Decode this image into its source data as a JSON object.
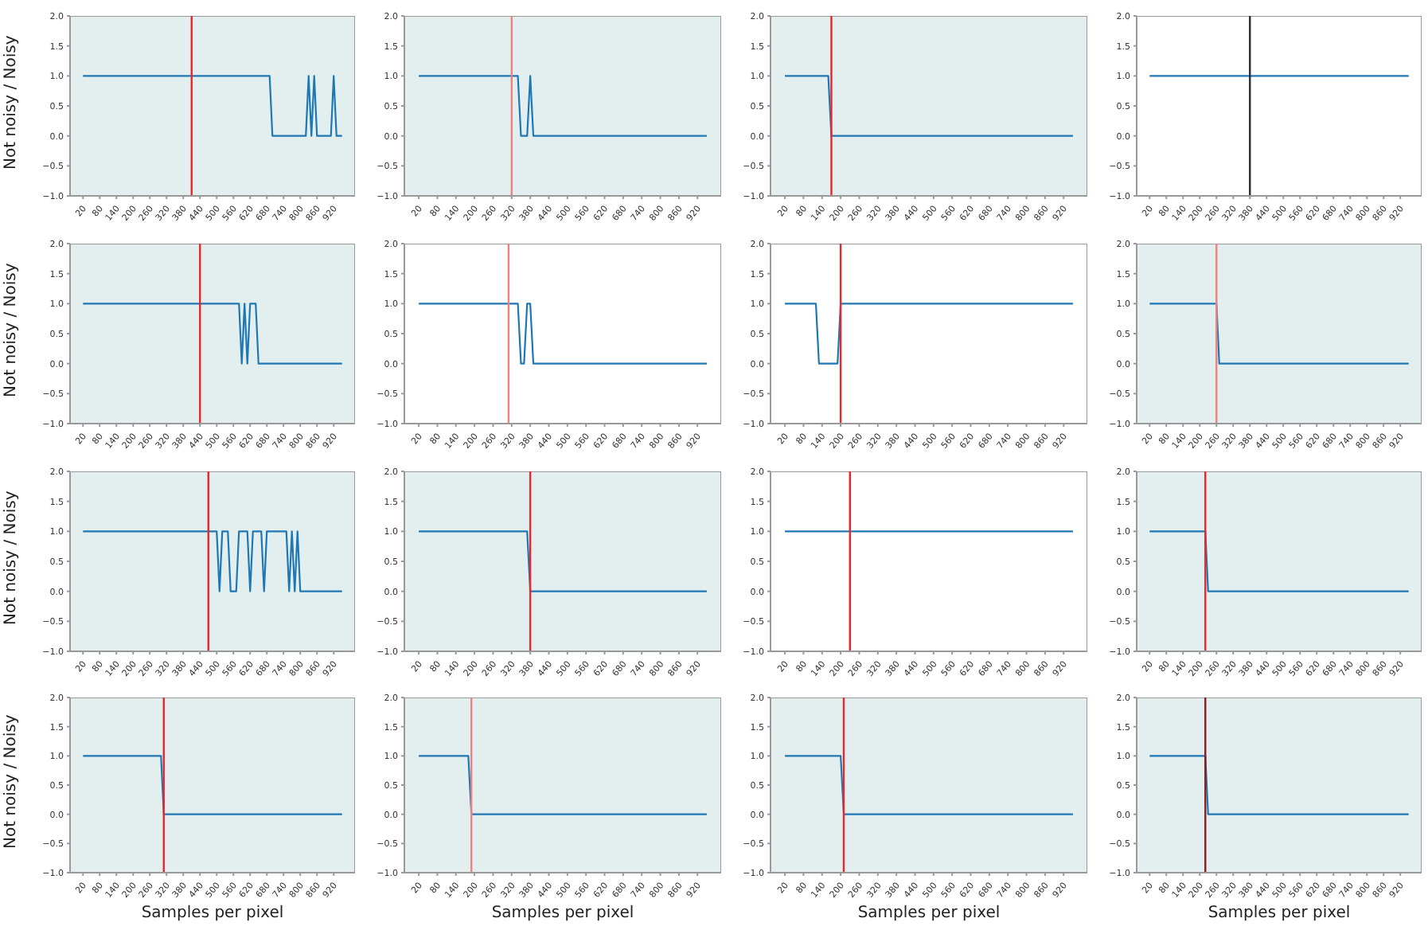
{
  "chart_data": [
    {
      "type": "line",
      "ylabel": "Not noisy / Noisy",
      "series": [
        {
          "color": "#1f77b4",
          "x": [
            20,
            690,
            700,
            820,
            830,
            840,
            850,
            860,
            910,
            920,
            930,
            950
          ],
          "values": [
            1,
            1,
            0,
            0,
            1,
            0,
            1,
            0,
            0,
            1,
            0,
            0
          ]
        }
      ],
      "xlim": [
        -26.5,
        996.5
      ],
      "xticks": [
        20,
        80,
        140,
        200,
        260,
        320,
        380,
        440,
        500,
        560,
        620,
        680,
        740,
        800,
        860,
        920
      ],
      "ylim": [
        -1,
        2
      ],
      "yticks": [
        {
          "value": -1,
          "label": "−1.0"
        },
        {
          "value": -0.5,
          "label": "−0.5"
        },
        {
          "value": 0,
          "label": "0.0"
        },
        {
          "value": 0.5,
          "label": "0.5"
        },
        {
          "value": 1,
          "label": "1.0"
        },
        {
          "value": 1.5,
          "label": "1.5"
        },
        {
          "value": 2,
          "label": "2.0"
        }
      ],
      "ref_lines": [
        {
          "axis": "x",
          "value": 410,
          "color": "#e8262b"
        }
      ],
      "bands": [
        {
          "axis": "x",
          "from": -26.5,
          "to": 996.5,
          "color": "#e3efef"
        }
      ]
    },
    {
      "type": "line",
      "series": [
        {
          "color": "#1f77b4",
          "x": [
            20,
            340,
            350,
            370,
            380,
            390,
            950
          ],
          "values": [
            1,
            1,
            0,
            0,
            1,
            0,
            0
          ]
        }
      ],
      "xlim": [
        -26.5,
        996.5
      ],
      "xticks": [
        20,
        80,
        140,
        200,
        260,
        320,
        380,
        440,
        500,
        560,
        620,
        680,
        740,
        800,
        860,
        920
      ],
      "ylim": [
        -1,
        2
      ],
      "yticks": [
        {
          "value": -1,
          "label": "−1.0"
        },
        {
          "value": -0.5,
          "label": "−0.5"
        },
        {
          "value": 0,
          "label": "0.0"
        },
        {
          "value": 0.5,
          "label": "0.5"
        },
        {
          "value": 1,
          "label": "1.0"
        },
        {
          "value": 1.5,
          "label": "1.5"
        },
        {
          "value": 2,
          "label": "2.0"
        }
      ],
      "ref_lines": [
        {
          "axis": "x",
          "value": 320,
          "color": "#f08080"
        }
      ],
      "bands": [
        {
          "axis": "x",
          "from": -26.5,
          "to": 996.5,
          "color": "#e3efef"
        }
      ]
    },
    {
      "type": "line",
      "series": [
        {
          "color": "#1f77b4",
          "x": [
            20,
            160,
            170,
            950
          ],
          "values": [
            1,
            1,
            0,
            0
          ]
        }
      ],
      "xlim": [
        -26.5,
        996.5
      ],
      "xticks": [
        20,
        80,
        140,
        200,
        260,
        320,
        380,
        440,
        500,
        560,
        620,
        680,
        740,
        800,
        860,
        920
      ],
      "ylim": [
        -1,
        2
      ],
      "yticks": [
        {
          "value": -1,
          "label": "−1.0"
        },
        {
          "value": -0.5,
          "label": "−0.5"
        },
        {
          "value": 0,
          "label": "0.0"
        },
        {
          "value": 0.5,
          "label": "0.5"
        },
        {
          "value": 1,
          "label": "1.0"
        },
        {
          "value": 1.5,
          "label": "1.5"
        },
        {
          "value": 2,
          "label": "2.0"
        }
      ],
      "ref_lines": [
        {
          "axis": "x",
          "value": 170,
          "color": "#e8262b"
        }
      ],
      "bands": [
        {
          "axis": "x",
          "from": -26.5,
          "to": 996.5,
          "color": "#e3efef"
        }
      ]
    },
    {
      "type": "line",
      "series": [
        {
          "color": "#1f77b4",
          "x": [
            20,
            950
          ],
          "values": [
            1,
            1
          ]
        }
      ],
      "xlim": [
        -26.5,
        996.5
      ],
      "xticks": [
        20,
        80,
        140,
        200,
        260,
        320,
        380,
        440,
        500,
        560,
        620,
        680,
        740,
        800,
        860,
        920
      ],
      "ylim": [
        -1,
        2
      ],
      "yticks": [
        {
          "value": -1,
          "label": "−1.0"
        },
        {
          "value": -0.5,
          "label": "−0.5"
        },
        {
          "value": 0,
          "label": "0.0"
        },
        {
          "value": 0.5,
          "label": "0.5"
        },
        {
          "value": 1,
          "label": "1.0"
        },
        {
          "value": 1.5,
          "label": "1.5"
        },
        {
          "value": 2,
          "label": "2.0"
        }
      ],
      "ref_lines": [
        {
          "axis": "x",
          "value": 380,
          "color": "#2a2a3a"
        }
      ]
    },
    {
      "type": "line",
      "ylabel": "Not noisy / Noisy",
      "series": [
        {
          "color": "#1f77b4",
          "x": [
            20,
            580,
            590,
            600,
            610,
            620,
            640,
            650,
            950
          ],
          "values": [
            1,
            1,
            0,
            1,
            0,
            1,
            1,
            0,
            0
          ]
        }
      ],
      "xlim": [
        -26.5,
        996.5
      ],
      "xticks": [
        20,
        80,
        140,
        200,
        260,
        320,
        380,
        440,
        500,
        560,
        620,
        680,
        740,
        800,
        860,
        920
      ],
      "ylim": [
        -1,
        2
      ],
      "yticks": [
        {
          "value": -1,
          "label": "−1.0"
        },
        {
          "value": -0.5,
          "label": "−0.5"
        },
        {
          "value": 0,
          "label": "0.0"
        },
        {
          "value": 0.5,
          "label": "0.5"
        },
        {
          "value": 1,
          "label": "1.0"
        },
        {
          "value": 1.5,
          "label": "1.5"
        },
        {
          "value": 2,
          "label": "2.0"
        }
      ],
      "ref_lines": [
        {
          "axis": "x",
          "value": 440,
          "color": "#e8262b"
        }
      ],
      "bands": [
        {
          "axis": "x",
          "from": -26.5,
          "to": 996.5,
          "color": "#e3efef"
        }
      ]
    },
    {
      "type": "line",
      "series": [
        {
          "color": "#1f77b4",
          "x": [
            20,
            340,
            350,
            360,
            370,
            380,
            390,
            950
          ],
          "values": [
            1,
            1,
            0,
            0,
            1,
            1,
            0,
            0
          ]
        }
      ],
      "xlim": [
        -26.5,
        996.5
      ],
      "xticks": [
        20,
        80,
        140,
        200,
        260,
        320,
        380,
        440,
        500,
        560,
        620,
        680,
        740,
        800,
        860,
        920
      ],
      "ylim": [
        -1,
        2
      ],
      "yticks": [
        {
          "value": -1,
          "label": "−1.0"
        },
        {
          "value": -0.5,
          "label": "−0.5"
        },
        {
          "value": 0,
          "label": "0.0"
        },
        {
          "value": 0.5,
          "label": "0.5"
        },
        {
          "value": 1,
          "label": "1.0"
        },
        {
          "value": 1.5,
          "label": "1.5"
        },
        {
          "value": 2,
          "label": "2.0"
        }
      ],
      "ref_lines": [
        {
          "axis": "x",
          "value": 310,
          "color": "#f08080"
        }
      ]
    },
    {
      "type": "line",
      "series": [
        {
          "color": "#1f77b4",
          "x": [
            20,
            120,
            130,
            190,
            200,
            950
          ],
          "values": [
            1,
            1,
            0,
            0,
            1,
            1
          ]
        }
      ],
      "xlim": [
        -26.5,
        996.5
      ],
      "xticks": [
        20,
        80,
        140,
        200,
        260,
        320,
        380,
        440,
        500,
        560,
        620,
        680,
        740,
        800,
        860,
        920
      ],
      "ylim": [
        -1,
        2
      ],
      "yticks": [
        {
          "value": -1,
          "label": "−1.0"
        },
        {
          "value": -0.5,
          "label": "−0.5"
        },
        {
          "value": 0,
          "label": "0.0"
        },
        {
          "value": 0.5,
          "label": "0.5"
        },
        {
          "value": 1,
          "label": "1.0"
        },
        {
          "value": 1.5,
          "label": "1.5"
        },
        {
          "value": 2,
          "label": "2.0"
        }
      ],
      "ref_lines": [
        {
          "axis": "x",
          "value": 200,
          "color": "#e8262b"
        }
      ]
    },
    {
      "type": "line",
      "series": [
        {
          "color": "#1f77b4",
          "x": [
            20,
            260,
            270,
            950
          ],
          "values": [
            1,
            1,
            0,
            0
          ]
        }
      ],
      "xlim": [
        -26.5,
        996.5
      ],
      "xticks": [
        20,
        80,
        140,
        200,
        260,
        320,
        380,
        440,
        500,
        560,
        620,
        680,
        740,
        800,
        860,
        920
      ],
      "ylim": [
        -1,
        2
      ],
      "yticks": [
        {
          "value": -1,
          "label": "−1.0"
        },
        {
          "value": -0.5,
          "label": "−0.5"
        },
        {
          "value": 0,
          "label": "0.0"
        },
        {
          "value": 0.5,
          "label": "0.5"
        },
        {
          "value": 1,
          "label": "1.0"
        },
        {
          "value": 1.5,
          "label": "1.5"
        },
        {
          "value": 2,
          "label": "2.0"
        }
      ],
      "ref_lines": [
        {
          "axis": "x",
          "value": 260,
          "color": "#f08080"
        }
      ],
      "bands": [
        {
          "axis": "x",
          "from": -26.5,
          "to": 996.5,
          "color": "#e3efef"
        }
      ]
    },
    {
      "type": "line",
      "ylabel": "Not noisy / Noisy",
      "series": [
        {
          "color": "#1f77b4",
          "x": [
            20,
            500,
            510,
            520,
            540,
            550,
            570,
            580,
            610,
            620,
            630,
            660,
            670,
            680,
            750,
            760,
            770,
            780,
            790,
            800,
            950
          ],
          "values": [
            1,
            1,
            0,
            1,
            1,
            0,
            0,
            1,
            1,
            0,
            1,
            1,
            0,
            1,
            1,
            0,
            1,
            0,
            1,
            0,
            0
          ]
        }
      ],
      "xlim": [
        -26.5,
        996.5
      ],
      "xticks": [
        20,
        80,
        140,
        200,
        260,
        320,
        380,
        440,
        500,
        560,
        620,
        680,
        740,
        800,
        860,
        920
      ],
      "ylim": [
        -1,
        2
      ],
      "yticks": [
        {
          "value": -1,
          "label": "−1.0"
        },
        {
          "value": -0.5,
          "label": "−0.5"
        },
        {
          "value": 0,
          "label": "0.0"
        },
        {
          "value": 0.5,
          "label": "0.5"
        },
        {
          "value": 1,
          "label": "1.0"
        },
        {
          "value": 1.5,
          "label": "1.5"
        },
        {
          "value": 2,
          "label": "2.0"
        }
      ],
      "ref_lines": [
        {
          "axis": "x",
          "value": 470,
          "color": "#e8262b"
        }
      ],
      "bands": [
        {
          "axis": "x",
          "from": -26.5,
          "to": 996.5,
          "color": "#e3efef"
        }
      ]
    },
    {
      "type": "line",
      "series": [
        {
          "color": "#1f77b4",
          "x": [
            20,
            370,
            380,
            950
          ],
          "values": [
            1,
            1,
            0,
            0
          ]
        }
      ],
      "xlim": [
        -26.5,
        996.5
      ],
      "xticks": [
        20,
        80,
        140,
        200,
        260,
        320,
        380,
        440,
        500,
        560,
        620,
        680,
        740,
        800,
        860,
        920
      ],
      "ylim": [
        -1,
        2
      ],
      "yticks": [
        {
          "value": -1,
          "label": "−1.0"
        },
        {
          "value": -0.5,
          "label": "−0.5"
        },
        {
          "value": 0,
          "label": "0.0"
        },
        {
          "value": 0.5,
          "label": "0.5"
        },
        {
          "value": 1,
          "label": "1.0"
        },
        {
          "value": 1.5,
          "label": "1.5"
        },
        {
          "value": 2,
          "label": "2.0"
        }
      ],
      "ref_lines": [
        {
          "axis": "x",
          "value": 380,
          "color": "#e8262b"
        }
      ],
      "bands": [
        {
          "axis": "x",
          "from": -26.5,
          "to": 996.5,
          "color": "#e3efef"
        }
      ]
    },
    {
      "type": "line",
      "series": [
        {
          "color": "#1f77b4",
          "x": [
            20,
            950
          ],
          "values": [
            1,
            1
          ]
        }
      ],
      "xlim": [
        -26.5,
        996.5
      ],
      "xticks": [
        20,
        80,
        140,
        200,
        260,
        320,
        380,
        440,
        500,
        560,
        620,
        680,
        740,
        800,
        860,
        920
      ],
      "ylim": [
        -1,
        2
      ],
      "yticks": [
        {
          "value": -1,
          "label": "−1.0"
        },
        {
          "value": -0.5,
          "label": "−0.5"
        },
        {
          "value": 0,
          "label": "0.0"
        },
        {
          "value": 0.5,
          "label": "0.5"
        },
        {
          "value": 1,
          "label": "1.0"
        },
        {
          "value": 1.5,
          "label": "1.5"
        },
        {
          "value": 2,
          "label": "2.0"
        }
      ],
      "ref_lines": [
        {
          "axis": "x",
          "value": 230,
          "color": "#e8262b"
        }
      ]
    },
    {
      "type": "line",
      "series": [
        {
          "color": "#1f77b4",
          "x": [
            20,
            220,
            230,
            950
          ],
          "values": [
            1,
            1,
            0,
            0
          ]
        }
      ],
      "xlim": [
        -26.5,
        996.5
      ],
      "xticks": [
        20,
        80,
        140,
        200,
        260,
        320,
        380,
        440,
        500,
        560,
        620,
        680,
        740,
        800,
        860,
        920
      ],
      "ylim": [
        -1,
        2
      ],
      "yticks": [
        {
          "value": -1,
          "label": "−1.0"
        },
        {
          "value": -0.5,
          "label": "−0.5"
        },
        {
          "value": 0,
          "label": "0.0"
        },
        {
          "value": 0.5,
          "label": "0.5"
        },
        {
          "value": 1,
          "label": "1.0"
        },
        {
          "value": 1.5,
          "label": "1.5"
        },
        {
          "value": 2,
          "label": "2.0"
        }
      ],
      "ref_lines": [
        {
          "axis": "x",
          "value": 220,
          "color": "#e8262b"
        }
      ],
      "bands": [
        {
          "axis": "x",
          "from": -26.5,
          "to": 996.5,
          "color": "#e3efef"
        }
      ]
    },
    {
      "type": "line",
      "ylabel": "Not noisy / Noisy",
      "xlabel": "Samples per pixel",
      "series": [
        {
          "color": "#1f77b4",
          "x": [
            20,
            300,
            310,
            950
          ],
          "values": [
            1,
            1,
            0,
            0
          ]
        }
      ],
      "xlim": [
        -26.5,
        996.5
      ],
      "xticks": [
        20,
        80,
        140,
        200,
        260,
        320,
        380,
        440,
        500,
        560,
        620,
        680,
        740,
        800,
        860,
        920
      ],
      "ylim": [
        -1,
        2
      ],
      "yticks": [
        {
          "value": -1,
          "label": "−1.0"
        },
        {
          "value": -0.5,
          "label": "−0.5"
        },
        {
          "value": 0,
          "label": "0.0"
        },
        {
          "value": 0.5,
          "label": "0.5"
        },
        {
          "value": 1,
          "label": "1.0"
        },
        {
          "value": 1.5,
          "label": "1.5"
        },
        {
          "value": 2,
          "label": "2.0"
        }
      ],
      "ref_lines": [
        {
          "axis": "x",
          "value": 310,
          "color": "#e8262b"
        }
      ],
      "bands": [
        {
          "axis": "x",
          "from": -26.5,
          "to": 996.5,
          "color": "#e3efef"
        }
      ]
    },
    {
      "type": "line",
      "xlabel": "Samples per pixel",
      "series": [
        {
          "color": "#1f77b4",
          "x": [
            20,
            180,
            190,
            950
          ],
          "values": [
            1,
            1,
            0,
            0
          ]
        }
      ],
      "xlim": [
        -26.5,
        996.5
      ],
      "xticks": [
        20,
        80,
        140,
        200,
        260,
        320,
        380,
        440,
        500,
        560,
        620,
        680,
        740,
        800,
        860,
        920
      ],
      "ylim": [
        -1,
        2
      ],
      "yticks": [
        {
          "value": -1,
          "label": "−1.0"
        },
        {
          "value": -0.5,
          "label": "−0.5"
        },
        {
          "value": 0,
          "label": "0.0"
        },
        {
          "value": 0.5,
          "label": "0.5"
        },
        {
          "value": 1,
          "label": "1.0"
        },
        {
          "value": 1.5,
          "label": "1.5"
        },
        {
          "value": 2,
          "label": "2.0"
        }
      ],
      "ref_lines": [
        {
          "axis": "x",
          "value": 190,
          "color": "#f08080"
        }
      ],
      "bands": [
        {
          "axis": "x",
          "from": -26.5,
          "to": 996.5,
          "color": "#e3efef"
        }
      ]
    },
    {
      "type": "line",
      "xlabel": "Samples per pixel",
      "series": [
        {
          "color": "#1f77b4",
          "x": [
            20,
            200,
            210,
            950
          ],
          "values": [
            1,
            1,
            0,
            0
          ]
        }
      ],
      "xlim": [
        -26.5,
        996.5
      ],
      "xticks": [
        20,
        80,
        140,
        200,
        260,
        320,
        380,
        440,
        500,
        560,
        620,
        680,
        740,
        800,
        860,
        920
      ],
      "ylim": [
        -1,
        2
      ],
      "yticks": [
        {
          "value": -1,
          "label": "−1.0"
        },
        {
          "value": -0.5,
          "label": "−0.5"
        },
        {
          "value": 0,
          "label": "0.0"
        },
        {
          "value": 0.5,
          "label": "0.5"
        },
        {
          "value": 1,
          "label": "1.0"
        },
        {
          "value": 1.5,
          "label": "1.5"
        },
        {
          "value": 2,
          "label": "2.0"
        }
      ],
      "ref_lines": [
        {
          "axis": "x",
          "value": 210,
          "color": "#e8262b"
        }
      ],
      "bands": [
        {
          "axis": "x",
          "from": -26.5,
          "to": 996.5,
          "color": "#e3efef"
        }
      ]
    },
    {
      "type": "line",
      "xlabel": "Samples per pixel",
      "series": [
        {
          "color": "#1f77b4",
          "x": [
            20,
            220,
            230,
            950
          ],
          "values": [
            1,
            1,
            0,
            0
          ]
        }
      ],
      "xlim": [
        -26.5,
        996.5
      ],
      "xticks": [
        20,
        80,
        140,
        200,
        260,
        320,
        380,
        440,
        500,
        560,
        620,
        680,
        740,
        800,
        860,
        920
      ],
      "ylim": [
        -1,
        2
      ],
      "yticks": [
        {
          "value": -1,
          "label": "−1.0"
        },
        {
          "value": -0.5,
          "label": "−0.5"
        },
        {
          "value": 0,
          "label": "0.0"
        },
        {
          "value": 0.5,
          "label": "0.5"
        },
        {
          "value": 1,
          "label": "1.0"
        },
        {
          "value": 1.5,
          "label": "1.5"
        },
        {
          "value": 2,
          "label": "2.0"
        }
      ],
      "ref_lines": [
        {
          "axis": "x",
          "value": 220,
          "color": "#8b1a1a"
        }
      ],
      "bands": [
        {
          "axis": "x",
          "from": -26.5,
          "to": 996.5,
          "color": "#e3efef"
        }
      ]
    }
  ]
}
